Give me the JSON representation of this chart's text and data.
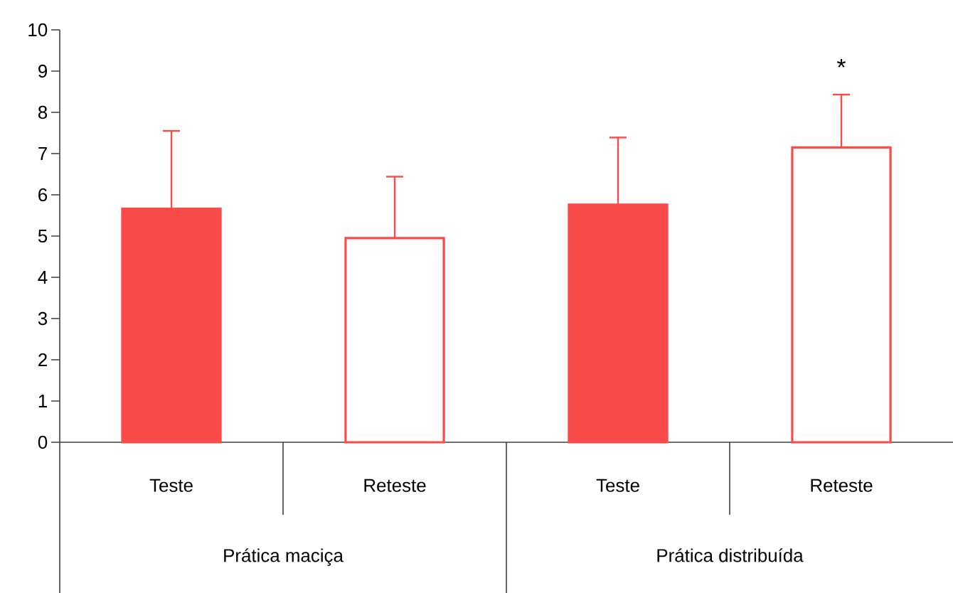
{
  "chart_data": {
    "type": "bar",
    "categories": [
      "Teste",
      "Reteste",
      "Teste",
      "Reteste"
    ],
    "values": [
      5.66,
      4.95,
      5.76,
      7.15
    ],
    "errors": [
      [
        5.66,
        7.55
      ],
      [
        4.95,
        6.44
      ],
      [
        5.76,
        7.39
      ],
      [
        7.15,
        8.43
      ]
    ],
    "color": "#fa4b4b",
    "colors": [
      "#fa4b4b",
      "#ffffff",
      "#fa4b4b",
      "#ffffff"
    ],
    "ylim": [
      0,
      10
    ],
    "yticks": [
      0,
      1,
      2,
      3,
      4,
      5,
      6,
      7,
      8,
      9,
      10
    ],
    "grid": false,
    "annotations": [
      "*",
      "Prática maciça",
      "Prática distribuída"
    ]
  }
}
